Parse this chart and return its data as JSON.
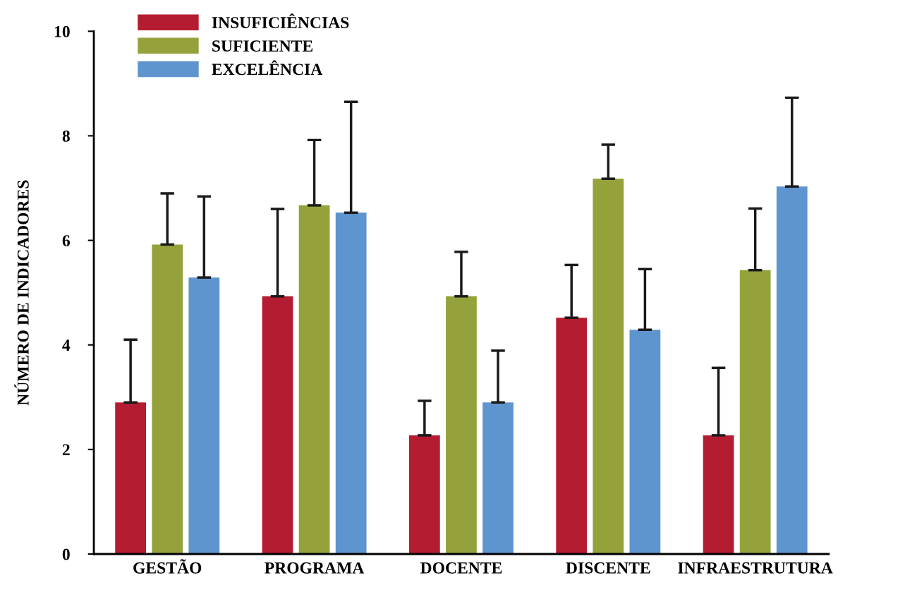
{
  "chart_data": {
    "type": "bar",
    "ylabel": "NÚMERO DE INDICADORES",
    "categories": [
      "GESTÃO",
      "PROGRAMA",
      "DOCENTE",
      "DISCENTE",
      "INFRAESTRUTURA"
    ],
    "series": [
      {
        "name": "INSUFICIÊNCIAS",
        "color": "#b41c31",
        "values": [
          2.9,
          4.93,
          2.27,
          4.52,
          2.27
        ],
        "errors": [
          [
            2.9,
            4.1
          ],
          [
            4.93,
            6.6
          ],
          [
            2.27,
            2.93
          ],
          [
            4.52,
            5.53
          ],
          [
            2.27,
            3.56
          ]
        ]
      },
      {
        "name": "SUFICIENTE",
        "color": "#95a23b",
        "values": [
          5.92,
          6.67,
          4.93,
          7.18,
          5.43
        ],
        "errors": [
          [
            5.92,
            6.9
          ],
          [
            6.67,
            7.92
          ],
          [
            4.93,
            5.78
          ],
          [
            7.18,
            7.83
          ],
          [
            5.43,
            6.61
          ]
        ]
      },
      {
        "name": "EXCELÊNCIA",
        "color": "#5f95cf",
        "values": [
          5.29,
          6.53,
          2.9,
          4.29,
          7.03
        ],
        "errors": [
          [
            5.29,
            6.84
          ],
          [
            6.53,
            8.65
          ],
          [
            2.9,
            3.89
          ],
          [
            4.29,
            5.45
          ],
          [
            7.03,
            8.73
          ]
        ]
      }
    ],
    "ylim": [
      0,
      10
    ],
    "yticks": [
      0,
      2,
      4,
      6,
      8,
      10
    ],
    "legend": "top left",
    "grid": false
  }
}
